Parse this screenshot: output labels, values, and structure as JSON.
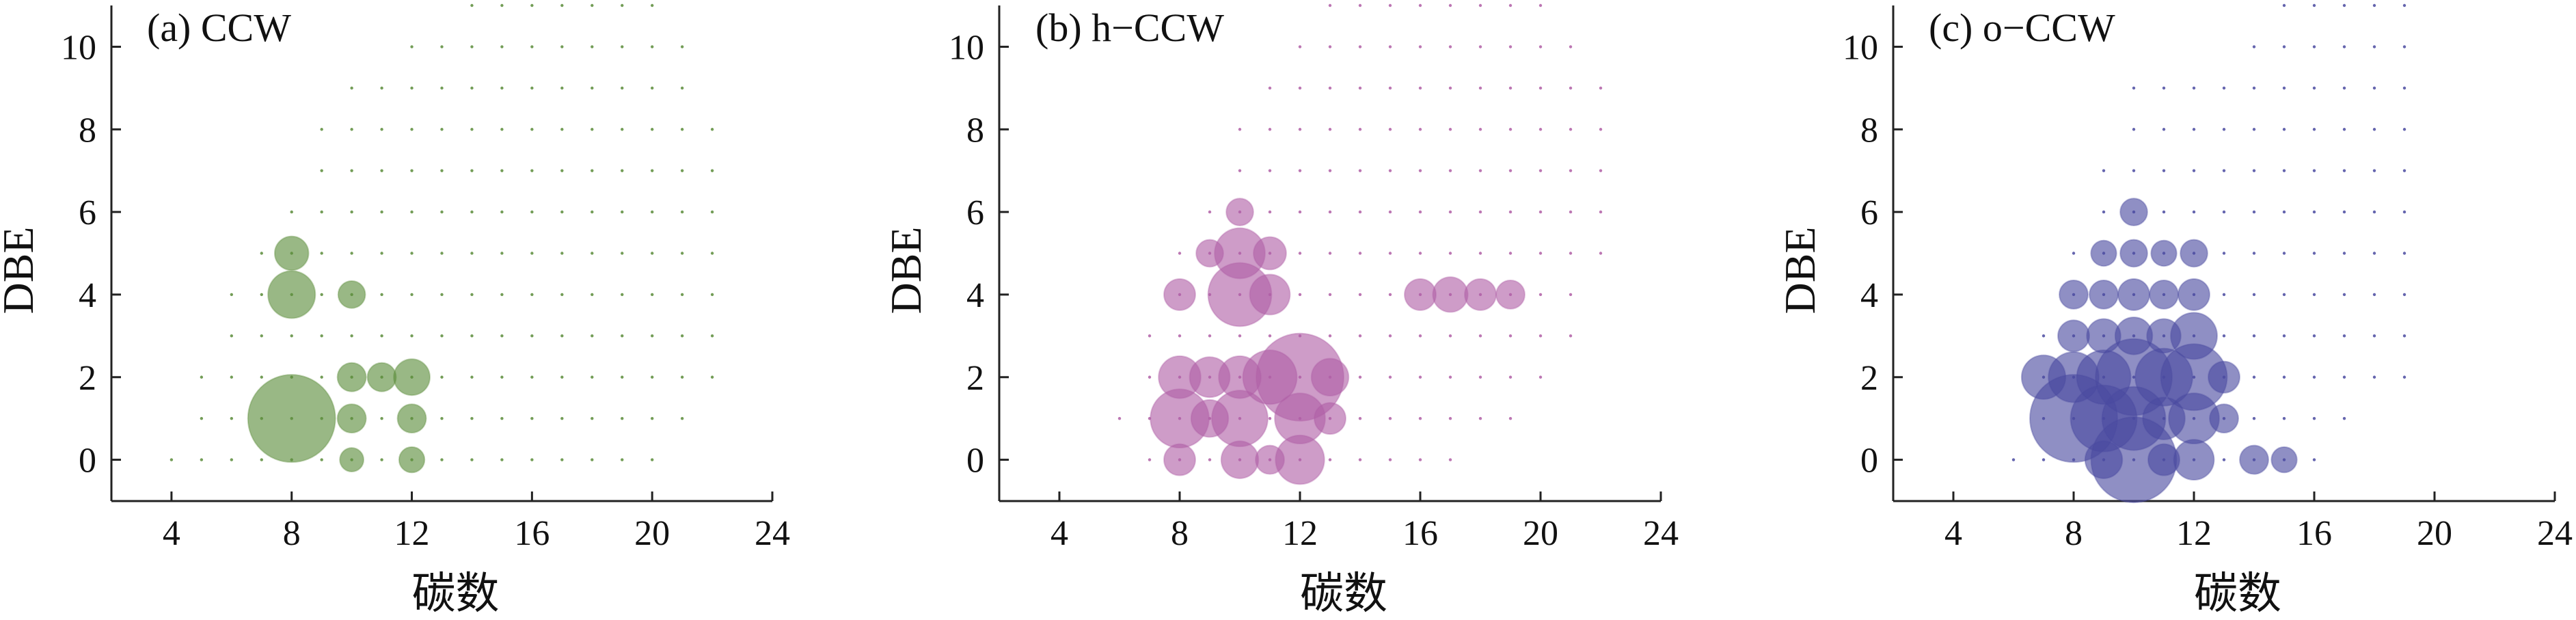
{
  "chart_data": [
    {
      "type": "scatter",
      "title": "(a)  CCW",
      "xlabel": "碳数",
      "ylabel": "DBE",
      "xlim": [
        2,
        24
      ],
      "ylim": [
        -1,
        11
      ],
      "xticks": [
        "4",
        "8",
        "12",
        "16",
        "20",
        "24"
      ],
      "yticks": [
        "0",
        "2",
        "4",
        "6",
        "8",
        "10"
      ],
      "grid": false,
      "color": "#5b8c3a",
      "points": [
        {
          "x": 8,
          "y": 1,
          "size": 1.0
        },
        {
          "x": 8,
          "y": 4,
          "size": 0.26
        },
        {
          "x": 8,
          "y": 5,
          "size": 0.12
        },
        {
          "x": 12,
          "y": 2,
          "size": 0.14
        },
        {
          "x": 10,
          "y": 2,
          "size": 0.08
        },
        {
          "x": 11,
          "y": 2,
          "size": 0.08
        },
        {
          "x": 10,
          "y": 1,
          "size": 0.08
        },
        {
          "x": 12,
          "y": 1,
          "size": 0.08
        },
        {
          "x": 10,
          "y": 4,
          "size": 0.07
        },
        {
          "x": 12,
          "y": 0,
          "size": 0.06
        },
        {
          "x": 10,
          "y": 0,
          "size": 0.05
        }
      ],
      "grid_points": {
        "x_start": [
          4,
          5,
          5,
          6,
          6,
          7,
          8,
          9,
          9,
          10,
          12,
          14,
          16,
          17
        ],
        "x_end": [
          20,
          21,
          22,
          22,
          22,
          22,
          22,
          22,
          22,
          21,
          21,
          20,
          19,
          17
        ]
      }
    },
    {
      "type": "scatter",
      "title": "(b)  h−CCW",
      "xlabel": "碳数",
      "ylabel": "DBE",
      "xlim": [
        2,
        24
      ],
      "ylim": [
        -1,
        11
      ],
      "xticks": [
        "4",
        "8",
        "12",
        "16",
        "20",
        "24"
      ],
      "yticks": [
        "0",
        "2",
        "4",
        "6",
        "8",
        "10"
      ],
      "grid": false,
      "color": "#b05fa6",
      "points": [
        {
          "x": 12,
          "y": 2,
          "size": 1.0
        },
        {
          "x": 10,
          "y": 4,
          "size": 0.5
        },
        {
          "x": 8,
          "y": 1,
          "size": 0.42
        },
        {
          "x": 10,
          "y": 1,
          "size": 0.38
        },
        {
          "x": 11,
          "y": 2,
          "size": 0.35
        },
        {
          "x": 12,
          "y": 1,
          "size": 0.3
        },
        {
          "x": 10,
          "y": 5,
          "size": 0.3
        },
        {
          "x": 12,
          "y": 0,
          "size": 0.28
        },
        {
          "x": 10,
          "y": 2,
          "size": 0.2
        },
        {
          "x": 8,
          "y": 2,
          "size": 0.2
        },
        {
          "x": 9,
          "y": 2,
          "size": 0.18
        },
        {
          "x": 11,
          "y": 4,
          "size": 0.18
        },
        {
          "x": 9,
          "y": 1,
          "size": 0.15
        },
        {
          "x": 13,
          "y": 2,
          "size": 0.15
        },
        {
          "x": 10,
          "y": 0,
          "size": 0.15
        },
        {
          "x": 17,
          "y": 4,
          "size": 0.13
        },
        {
          "x": 11,
          "y": 5,
          "size": 0.11
        },
        {
          "x": 8,
          "y": 4,
          "size": 0.1
        },
        {
          "x": 16,
          "y": 4,
          "size": 0.1
        },
        {
          "x": 18,
          "y": 4,
          "size": 0.1
        },
        {
          "x": 13,
          "y": 1,
          "size": 0.1
        },
        {
          "x": 8,
          "y": 0,
          "size": 0.1
        },
        {
          "x": 11,
          "y": 0,
          "size": 0.08
        },
        {
          "x": 19,
          "y": 4,
          "size": 0.08
        },
        {
          "x": 10,
          "y": 6,
          "size": 0.07
        },
        {
          "x": 9,
          "y": 5,
          "size": 0.07
        }
      ],
      "grid_points": {
        "x_start": [
          7,
          6,
          7,
          7,
          8,
          8,
          9,
          10,
          10,
          11,
          12,
          13,
          14,
          16
        ],
        "x_end": [
          17,
          19,
          20,
          21,
          21,
          22,
          22,
          22,
          22,
          22,
          21,
          20,
          19,
          16
        ]
      }
    },
    {
      "type": "scatter",
      "title": "(c)  o−CCW",
      "xlabel": "碳数",
      "ylabel": "DBE",
      "xlim": [
        2,
        24
      ],
      "ylim": [
        -1,
        11
      ],
      "xticks": [
        "4",
        "8",
        "12",
        "16",
        "20",
        "24"
      ],
      "yticks": [
        "0",
        "2",
        "4",
        "6",
        "8",
        "10"
      ],
      "grid": false,
      "color": "#4a4aa0",
      "points": [
        {
          "x": 8,
          "y": 1,
          "size": 1.0
        },
        {
          "x": 10,
          "y": 0,
          "size": 0.95
        },
        {
          "x": 10,
          "y": 2,
          "size": 0.75
        },
        {
          "x": 9,
          "y": 1,
          "size": 0.55
        },
        {
          "x": 10,
          "y": 1,
          "size": 0.5
        },
        {
          "x": 12,
          "y": 2,
          "size": 0.55
        },
        {
          "x": 11,
          "y": 2,
          "size": 0.4
        },
        {
          "x": 9,
          "y": 2,
          "size": 0.35
        },
        {
          "x": 8,
          "y": 2,
          "size": 0.3
        },
        {
          "x": 12,
          "y": 1,
          "size": 0.3
        },
        {
          "x": 7,
          "y": 2,
          "size": 0.22
        },
        {
          "x": 11,
          "y": 1,
          "size": 0.2
        },
        {
          "x": 12,
          "y": 3,
          "size": 0.25
        },
        {
          "x": 12,
          "y": 0,
          "size": 0.18
        },
        {
          "x": 9,
          "y": 0,
          "size": 0.15
        },
        {
          "x": 10,
          "y": 3,
          "size": 0.15
        },
        {
          "x": 11,
          "y": 3,
          "size": 0.12
        },
        {
          "x": 9,
          "y": 3,
          "size": 0.12
        },
        {
          "x": 8,
          "y": 3,
          "size": 0.1
        },
        {
          "x": 10,
          "y": 4,
          "size": 0.1
        },
        {
          "x": 12,
          "y": 4,
          "size": 0.1
        },
        {
          "x": 8,
          "y": 4,
          "size": 0.08
        },
        {
          "x": 11,
          "y": 4,
          "size": 0.08
        },
        {
          "x": 9,
          "y": 4,
          "size": 0.08
        },
        {
          "x": 13,
          "y": 2,
          "size": 0.1
        },
        {
          "x": 14,
          "y": 0,
          "size": 0.08
        },
        {
          "x": 15,
          "y": 0,
          "size": 0.06
        },
        {
          "x": 11,
          "y": 0,
          "size": 0.1
        },
        {
          "x": 10,
          "y": 5,
          "size": 0.07
        },
        {
          "x": 12,
          "y": 5,
          "size": 0.07
        },
        {
          "x": 9,
          "y": 5,
          "size": 0.06
        },
        {
          "x": 11,
          "y": 5,
          "size": 0.06
        },
        {
          "x": 10,
          "y": 6,
          "size": 0.07
        },
        {
          "x": 13,
          "y": 1,
          "size": 0.08
        }
      ],
      "grid_points": {
        "x_start": [
          6,
          7,
          7,
          7,
          8,
          8,
          9,
          9,
          10,
          10,
          14,
          15,
          16,
          16
        ],
        "x_end": [
          16,
          17,
          19,
          19,
          19,
          19,
          19,
          19,
          19,
          19,
          19,
          19,
          18,
          16
        ]
      }
    }
  ]
}
